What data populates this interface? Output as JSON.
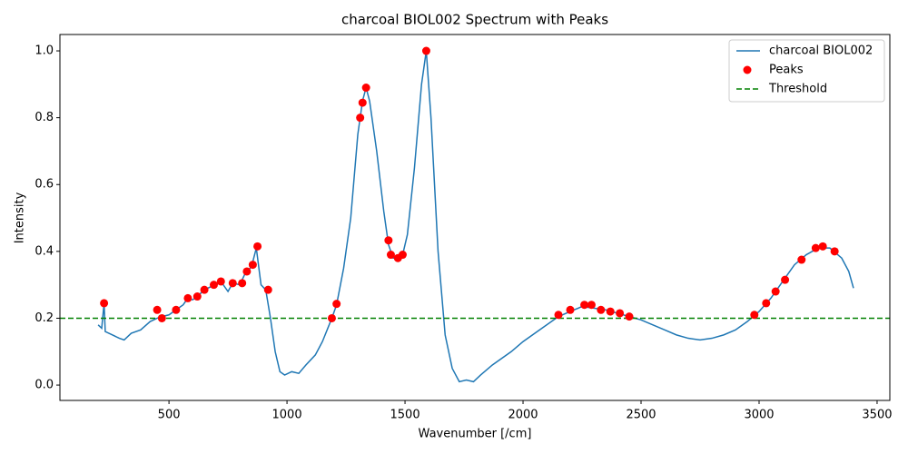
{
  "chart_data": {
    "type": "line",
    "title": "charcoal BIOL002 Spectrum with Peaks",
    "x_label": "Wavenumber [/cm]",
    "y_label": "Intensity",
    "xlim": [
      38,
      3554
    ],
    "ylim": [
      -0.046,
      1.049
    ],
    "xticks": [
      500,
      1000,
      1500,
      2000,
      2500,
      3000,
      3500
    ],
    "yticks": [
      {
        "value": 0,
        "label": "0.0"
      },
      0.2,
      0.4,
      0.6,
      0.8,
      {
        "value": 1,
        "label": "1.0"
      }
    ],
    "legend": "upper right",
    "series": [
      {
        "name": "charcoal BIOL002",
        "type": "line",
        "color": "#1f77b4",
        "x": [
          200,
          215,
          225,
          230,
          260,
          290,
          310,
          340,
          380,
          420,
          450,
          470,
          500,
          530,
          560,
          580,
          600,
          620,
          650,
          680,
          700,
          720,
          750,
          770,
          800,
          820,
          850,
          870,
          890,
          910,
          930,
          950,
          970,
          990,
          1020,
          1050,
          1080,
          1120,
          1150,
          1190,
          1210,
          1240,
          1270,
          1300,
          1320,
          1335,
          1350,
          1380,
          1410,
          1430,
          1450,
          1470,
          1490,
          1510,
          1540,
          1570,
          1590,
          1610,
          1640,
          1670,
          1700,
          1730,
          1760,
          1790,
          1820,
          1870,
          1950,
          2000,
          2080,
          2150,
          2200,
          2250,
          2300,
          2350,
          2400,
          2450,
          2500,
          2550,
          2600,
          2650,
          2700,
          2750,
          2800,
          2850,
          2900,
          2950,
          3000,
          3050,
          3100,
          3150,
          3200,
          3250,
          3300,
          3350,
          3380,
          3400
        ],
        "values": [
          0.18,
          0.17,
          0.245,
          0.16,
          0.15,
          0.14,
          0.135,
          0.155,
          0.165,
          0.19,
          0.2,
          0.205,
          0.21,
          0.225,
          0.24,
          0.26,
          0.255,
          0.265,
          0.285,
          0.295,
          0.3,
          0.31,
          0.28,
          0.305,
          0.3,
          0.33,
          0.355,
          0.41,
          0.3,
          0.285,
          0.2,
          0.1,
          0.04,
          0.03,
          0.04,
          0.035,
          0.06,
          0.09,
          0.13,
          0.2,
          0.24,
          0.35,
          0.5,
          0.75,
          0.85,
          0.89,
          0.85,
          0.7,
          0.52,
          0.42,
          0.38,
          0.38,
          0.39,
          0.45,
          0.65,
          0.9,
          1.0,
          0.8,
          0.4,
          0.15,
          0.05,
          0.01,
          0.015,
          0.01,
          0.03,
          0.06,
          0.1,
          0.13,
          0.17,
          0.205,
          0.22,
          0.235,
          0.23,
          0.225,
          0.215,
          0.205,
          0.195,
          0.18,
          0.165,
          0.15,
          0.14,
          0.135,
          0.14,
          0.15,
          0.165,
          0.19,
          0.22,
          0.26,
          0.31,
          0.36,
          0.39,
          0.41,
          0.41,
          0.38,
          0.34,
          0.29
        ]
      },
      {
        "name": "Peaks",
        "type": "scatter",
        "color": "#ff0000",
        "x": [
          225,
          450,
          470,
          530,
          580,
          620,
          650,
          690,
          720,
          770,
          810,
          830,
          855,
          875,
          920,
          1190,
          1210,
          1310,
          1320,
          1335,
          1430,
          1440,
          1470,
          1490,
          1590,
          2150,
          2200,
          2260,
          2290,
          2330,
          2370,
          2410,
          2450,
          2980,
          3030,
          3070,
          3110,
          3180,
          3240,
          3270,
          3320
        ],
        "values": [
          0.245,
          0.225,
          0.2,
          0.225,
          0.26,
          0.265,
          0.285,
          0.3,
          0.31,
          0.305,
          0.305,
          0.34,
          0.36,
          0.415,
          0.285,
          0.2,
          0.243,
          0.8,
          0.845,
          0.89,
          0.433,
          0.39,
          0.38,
          0.39,
          1.0,
          0.21,
          0.225,
          0.24,
          0.24,
          0.225,
          0.22,
          0.215,
          0.205,
          0.21,
          0.245,
          0.28,
          0.315,
          0.375,
          0.41,
          0.415,
          0.4
        ]
      },
      {
        "name": "Threshold",
        "type": "hline",
        "color": "#008000",
        "dashed": true,
        "value": 0.2
      }
    ]
  }
}
